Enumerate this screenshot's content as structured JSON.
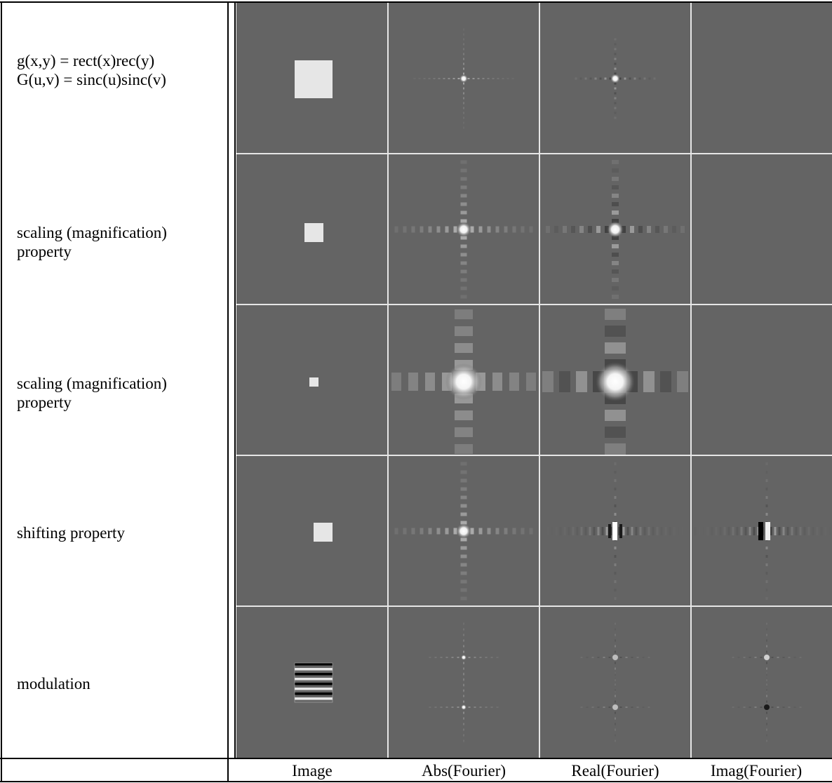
{
  "rows": [
    {
      "label_lines": [
        "g(x,y) = rect(x)rec(y)",
        "G(u,v) = sinc(u)sinc(v)"
      ]
    },
    {
      "label_lines": [
        "scaling (magnification)",
        "property"
      ]
    },
    {
      "label_lines": [
        "scaling (magnification)",
        "property"
      ]
    },
    {
      "label_lines": [
        "shifting property"
      ]
    },
    {
      "label_lines": [
        "modulation"
      ]
    }
  ],
  "columns": [
    "Image",
    "Abs(Fourier)",
    "Real(Fourier)",
    "Imag(Fourier)"
  ],
  "colors": {
    "background": "#646464",
    "grid": "#e6e6e6",
    "square": "#e6e6e6",
    "frame": "#000000"
  }
}
